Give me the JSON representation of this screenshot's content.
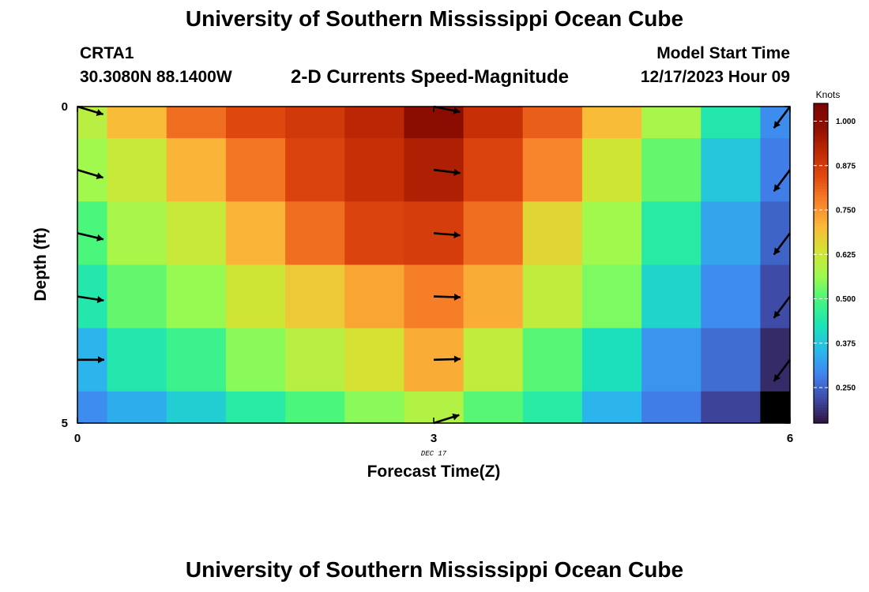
{
  "page": {
    "title": "University of Southern Mississippi Ocean Cube",
    "bottom_title": "University of Southern Mississippi Ocean Cube",
    "station_id": "CRTA1",
    "station_coords": "30.3080N  88.1400W",
    "subtitle": "2-D Currents Speed-Magnitude",
    "model_start_label": "Model Start Time",
    "model_start_time": "12/17/2023 Hour 09"
  },
  "chart_data": {
    "type": "heatmap",
    "title": "2-D Currents Speed-Magnitude",
    "xlabel": "Forecast Time(Z)",
    "ylabel": "Depth (ft)",
    "x_tick_labels": [
      "0",
      "3",
      "6"
    ],
    "y_tick_labels": [
      "0",
      "5"
    ],
    "xlim": [
      0,
      6
    ],
    "ylim": [
      0,
      5
    ],
    "date_label": "DEC 17",
    "colorbar": {
      "title": "Knots",
      "range": [
        0.15,
        1.05
      ],
      "ticks": [
        "1.000",
        "0.875",
        "0.750",
        "0.625",
        "0.500",
        "0.375",
        "0.250"
      ],
      "tick_values": [
        1.0,
        0.875,
        0.75,
        0.625,
        0.5,
        0.375,
        0.25
      ]
    },
    "x_centers": [
      0,
      0.5,
      1,
      1.5,
      2,
      2.5,
      3,
      3.5,
      4,
      4.5,
      5,
      5.5,
      6
    ],
    "depth_rows": [
      0,
      1,
      2,
      3,
      4,
      5
    ],
    "speed_knots": [
      [
        0.6,
        0.7,
        0.8,
        0.85,
        0.88,
        0.92,
        1.0,
        0.9,
        0.82,
        0.7,
        0.58,
        0.44,
        0.3
      ],
      [
        0.57,
        0.62,
        0.71,
        0.79,
        0.86,
        0.9,
        0.94,
        0.86,
        0.77,
        0.63,
        0.52,
        0.38,
        0.28
      ],
      [
        0.5,
        0.58,
        0.62,
        0.71,
        0.8,
        0.86,
        0.87,
        0.8,
        0.66,
        0.57,
        0.45,
        0.33,
        0.25
      ],
      [
        0.44,
        0.52,
        0.56,
        0.63,
        0.68,
        0.73,
        0.78,
        0.72,
        0.61,
        0.54,
        0.4,
        0.3,
        0.22
      ],
      [
        0.35,
        0.44,
        0.48,
        0.55,
        0.6,
        0.64,
        0.72,
        0.61,
        0.51,
        0.42,
        0.31,
        0.26,
        0.18
      ],
      [
        0.3,
        0.34,
        0.39,
        0.45,
        0.5,
        0.55,
        0.59,
        0.51,
        0.45,
        0.35,
        0.28,
        0.21,
        0.05
      ]
    ],
    "vectors": [
      {
        "x": 0,
        "depth": 0,
        "u": 0.96,
        "v": -0.29
      },
      {
        "x": 0,
        "depth": 1,
        "u": 0.96,
        "v": -0.29
      },
      {
        "x": 0,
        "depth": 2,
        "u": 0.97,
        "v": -0.23
      },
      {
        "x": 0,
        "depth": 3,
        "u": 0.98,
        "v": -0.15
      },
      {
        "x": 0,
        "depth": 4,
        "u": 1.0,
        "v": 0.0
      },
      {
        "x": 3,
        "depth": 0,
        "u": 0.98,
        "v": -0.2
      },
      {
        "x": 3,
        "depth": 1,
        "u": 0.99,
        "v": -0.12
      },
      {
        "x": 3,
        "depth": 2,
        "u": 0.99,
        "v": -0.08
      },
      {
        "x": 3,
        "depth": 3,
        "u": 1.0,
        "v": -0.03
      },
      {
        "x": 3,
        "depth": 4,
        "u": 1.0,
        "v": 0.03
      },
      {
        "x": 3,
        "depth": 5,
        "u": 0.95,
        "v": 0.3
      },
      {
        "x": 6,
        "depth": 0,
        "u": -0.6,
        "v": -0.8
      },
      {
        "x": 6,
        "depth": 1,
        "u": -0.6,
        "v": -0.8
      },
      {
        "x": 6,
        "depth": 2,
        "u": -0.6,
        "v": -0.8
      },
      {
        "x": 6,
        "depth": 3,
        "u": -0.6,
        "v": -0.8
      },
      {
        "x": 6,
        "depth": 4,
        "u": -0.6,
        "v": -0.8
      }
    ],
    "grid": false,
    "legend": "colorbar-right",
    "colors": {
      "colormap": [
        "#30123b",
        "#3e4ba6",
        "#4184f0",
        "#28bbeb",
        "#1be4b6",
        "#45f67f",
        "#9efa4f",
        "#d3e434",
        "#faba39",
        "#f8832a",
        "#e24c10",
        "#c12a05",
        "#921000",
        "#7a0403"
      ],
      "vector": "#000000",
      "frame": "#000000"
    }
  }
}
